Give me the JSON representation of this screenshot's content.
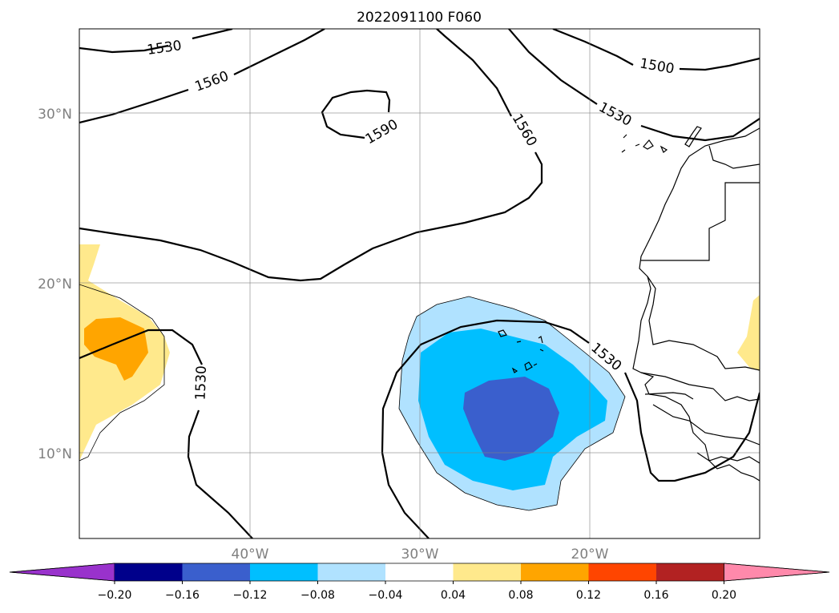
{
  "title": "2022091100 F060",
  "map": {
    "lat_labels": [
      "30°N",
      "20°N",
      "10°N"
    ],
    "lon_labels": [
      "40°W",
      "30°W",
      "20°W"
    ],
    "contour_labels": [
      "1530",
      "1560",
      "1590",
      "1560",
      "1500",
      "1530",
      "1530",
      "1530"
    ]
  },
  "colorbar": {
    "colors": [
      "#9932cc",
      "#00008b",
      "#3a5fcd",
      "#00bfff",
      "#b0e2ff",
      "#ffffff",
      "#ffe98c",
      "#ffa500",
      "#ff4500",
      "#b22222",
      "#ff89ab"
    ],
    "tick_labels": [
      "−0.20",
      "−0.16",
      "−0.12",
      "−0.08",
      "−0.04",
      "0.04",
      "0.08",
      "0.12",
      "0.16",
      "0.20"
    ]
  }
}
